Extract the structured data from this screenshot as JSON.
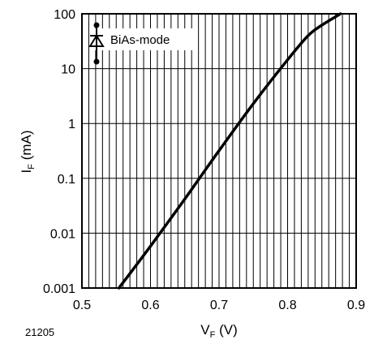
{
  "figure_id": "21205",
  "chart_data": {
    "type": "line",
    "xlabel": {
      "main": "V",
      "sub": "F",
      "unit": " (V)"
    },
    "ylabel": {
      "main": "I",
      "sub": "F",
      "unit": " (mA)"
    },
    "xlim": [
      0.5,
      0.9
    ],
    "ylim": [
      0.001,
      100
    ],
    "yscale": "log",
    "grid": true,
    "legend": {
      "placement": "top-left",
      "label": "BiAs-mode",
      "symbol": "diode-icon"
    },
    "x_ticks": [
      {
        "value": 0.5,
        "label": "0.5"
      },
      {
        "value": 0.6,
        "label": "0.6"
      },
      {
        "value": 0.7,
        "label": "0.7"
      },
      {
        "value": 0.8,
        "label": "0.8"
      },
      {
        "value": 0.9,
        "label": "0.9"
      }
    ],
    "y_ticks": [
      {
        "value": 0.001,
        "label": "0.001"
      },
      {
        "value": 0.01,
        "label": "0.01"
      },
      {
        "value": 0.1,
        "label": "0.1"
      },
      {
        "value": 1,
        "label": "1"
      },
      {
        "value": 10,
        "label": "10"
      },
      {
        "value": 100,
        "label": "100"
      }
    ],
    "series": [
      {
        "color": "#000000",
        "points": [
          [
            0.554,
            0.001
          ],
          [
            0.6,
            0.0058
          ],
          [
            0.65,
            0.042
          ],
          [
            0.7,
            0.32
          ],
          [
            0.75,
            2.3
          ],
          [
            0.8,
            14.5
          ],
          [
            0.83,
            40
          ],
          [
            0.85,
            62
          ],
          [
            0.877,
            100
          ]
        ]
      }
    ]
  }
}
